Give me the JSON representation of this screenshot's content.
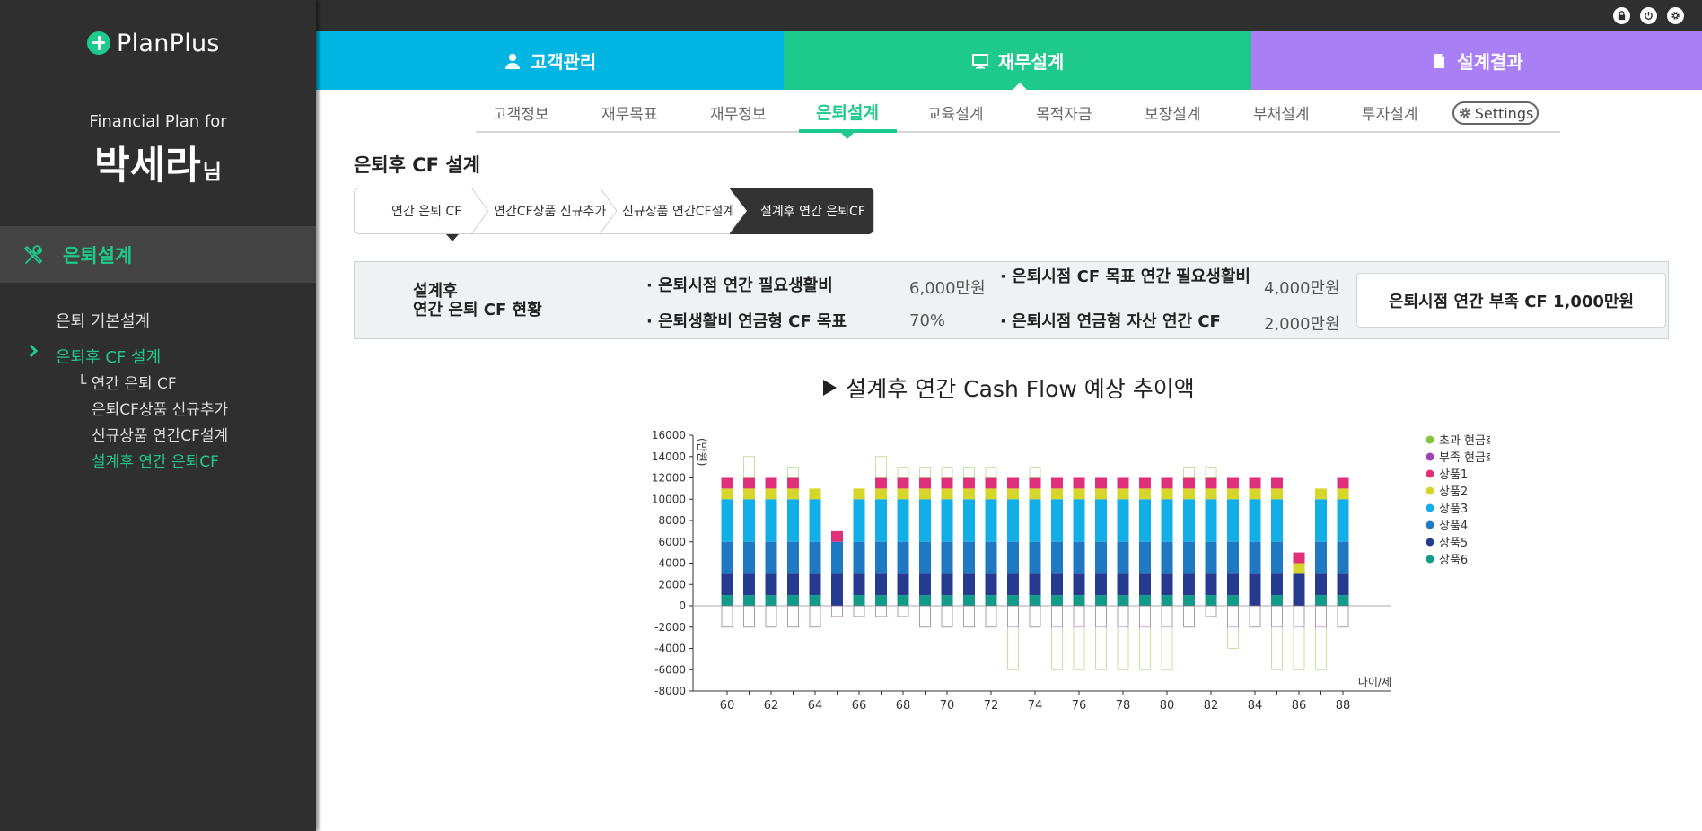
{
  "brand": {
    "logo_text": "PlanPlus"
  },
  "sidebar": {
    "plan_for": "Financial Plan for",
    "client_name": "박세라",
    "client_suffix": "님",
    "section_label": "은퇴설계",
    "menu": [
      {
        "label": "은퇴 기본설계"
      },
      {
        "label": "은퇴후 CF 설계"
      },
      {
        "label": "└ 연간 은퇴 CF"
      },
      {
        "label": "은퇴CF상품 신규추가"
      },
      {
        "label": "신규상품 연간CF설계"
      },
      {
        "label": "설계후 연간 은퇴CF"
      }
    ]
  },
  "topbar": {
    "icons": [
      "lock-icon",
      "power-icon",
      "gear-icon"
    ]
  },
  "main_tabs": [
    {
      "label": "고객관리",
      "icon": "user-icon",
      "color": "#00b5e2"
    },
    {
      "label": "재무설계",
      "icon": "monitor-icon",
      "color": "#1ec98c"
    },
    {
      "label": "설계결과",
      "icon": "document-icon",
      "color": "#a87ff5"
    }
  ],
  "sub_tabs": [
    {
      "label": "고객정보"
    },
    {
      "label": "재무목표"
    },
    {
      "label": "재무정보"
    },
    {
      "label": "은퇴설계"
    },
    {
      "label": "교육설계"
    },
    {
      "label": "목적자금"
    },
    {
      "label": "보장설계"
    },
    {
      "label": "부채설계"
    },
    {
      "label": "투자설계"
    }
  ],
  "settings_label": "Settings",
  "section_title": "은퇴후 CF 설계",
  "steps": [
    {
      "label": "연간 은퇴 CF"
    },
    {
      "label": "연간CF상품 신규추가"
    },
    {
      "label": "신규상품 연간CF설계"
    },
    {
      "label": "설계후 연간 은퇴CF"
    }
  ],
  "status": {
    "label_line1": "설계후",
    "label_line2": "연간 은퇴 CF 현황",
    "items": [
      {
        "label": "· 은퇴시점 연간 필요생활비",
        "value": "6,000만원"
      },
      {
        "label": "· 은퇴시점 CF 목표 연간 필요생활비",
        "value": "4,000만원"
      },
      {
        "label": "· 은퇴생활비 연금형 CF 목표",
        "value": "70%"
      },
      {
        "label": "· 은퇴시점 연금형 자산 연간 CF",
        "value": "2,000만원"
      }
    ],
    "shortfall": "은퇴시점 연간 부족 CF 1,000만원"
  },
  "chart_title": "설계후 연간 Cash Flow 예상 추이액",
  "chart_data": {
    "type": "bar",
    "stacked": true,
    "ylabel": "(만원)",
    "xlabel": "나이/세",
    "ylim": [
      -8000,
      16000
    ],
    "yticks": [
      16000,
      14000,
      12000,
      10000,
      8000,
      6000,
      4000,
      2000,
      0,
      -2000,
      -4000,
      -6000,
      -8000
    ],
    "xticks": [
      60,
      62,
      64,
      66,
      68,
      70,
      72,
      74,
      76,
      78,
      80,
      82,
      84,
      86,
      88
    ],
    "x": [
      60,
      61,
      62,
      63,
      64,
      65,
      66,
      67,
      68,
      69,
      70,
      71,
      72,
      73,
      74,
      75,
      76,
      77,
      78,
      79,
      80,
      81,
      82,
      83,
      84,
      85,
      86,
      87,
      88
    ],
    "legend_position": "right",
    "series": [
      {
        "name": "상품6",
        "color": "#139b8a",
        "values": [
          1000,
          1000,
          1000,
          1000,
          1000,
          0,
          1000,
          1000,
          1000,
          1000,
          1000,
          1000,
          1000,
          1000,
          1000,
          1000,
          1000,
          1000,
          1000,
          1000,
          1000,
          1000,
          1000,
          1000,
          0,
          1000,
          0,
          1000,
          1000
        ]
      },
      {
        "name": "상품5",
        "color": "#263a8f",
        "values": [
          2000,
          2000,
          2000,
          2000,
          2000,
          3000,
          2000,
          2000,
          2000,
          2000,
          2000,
          2000,
          2000,
          2000,
          2000,
          2000,
          2000,
          2000,
          2000,
          2000,
          2000,
          2000,
          2000,
          2000,
          3000,
          2000,
          3000,
          2000,
          2000
        ]
      },
      {
        "name": "상품4",
        "color": "#1e78c2",
        "values": [
          3000,
          3000,
          3000,
          3000,
          3000,
          3000,
          3000,
          3000,
          3000,
          3000,
          3000,
          3000,
          3000,
          3000,
          3000,
          3000,
          3000,
          3000,
          3000,
          3000,
          3000,
          3000,
          3000,
          3000,
          3000,
          3000,
          0,
          3000,
          3000
        ]
      },
      {
        "name": "상품3",
        "color": "#12aee8",
        "values": [
          4000,
          4000,
          4000,
          4000,
          4000,
          0,
          4000,
          4000,
          4000,
          4000,
          4000,
          4000,
          4000,
          4000,
          4000,
          4000,
          4000,
          4000,
          4000,
          4000,
          4000,
          4000,
          4000,
          4000,
          4000,
          4000,
          0,
          4000,
          4000
        ]
      },
      {
        "name": "상품2",
        "color": "#d6d62a",
        "values": [
          1000,
          1000,
          1000,
          1000,
          1000,
          0,
          1000,
          1000,
          1000,
          1000,
          1000,
          1000,
          1000,
          1000,
          1000,
          1000,
          1000,
          1000,
          1000,
          1000,
          1000,
          1000,
          1000,
          1000,
          1000,
          1000,
          1000,
          1000,
          1000
        ]
      },
      {
        "name": "상품1",
        "color": "#e0307a",
        "values": [
          1000,
          1000,
          1000,
          1000,
          0,
          1000,
          0,
          1000,
          1000,
          1000,
          1000,
          1000,
          1000,
          1000,
          1000,
          1000,
          1000,
          1000,
          1000,
          1000,
          1000,
          1000,
          1000,
          1000,
          1000,
          1000,
          1000,
          0,
          1000
        ]
      }
    ],
    "excess_cf": {
      "name": "초과 현금흐름",
      "color": "#86c43d",
      "values": [
        0,
        2000,
        0,
        1000,
        0,
        0,
        0,
        2000,
        1000,
        1000,
        1000,
        1000,
        1000,
        0,
        1000,
        0,
        0,
        0,
        0,
        0,
        0,
        1000,
        1000,
        0,
        0,
        0,
        0,
        0,
        0
      ]
    },
    "deficit_cf": {
      "name": "부족 현금흐름",
      "color": "#9b45b5",
      "values": [
        -2000,
        -2000,
        -2000,
        -2000,
        -2000,
        -1000,
        -1000,
        -1000,
        -1000,
        -2000,
        -2000,
        -2000,
        -2000,
        -6000,
        -2000,
        -6000,
        -6000,
        -6000,
        -6000,
        -6000,
        -6000,
        -2000,
        -1000,
        -4000,
        -2000,
        -6000,
        -6000,
        -6000,
        -2000
      ]
    },
    "legend": [
      {
        "name": "초과 현금흐름",
        "color": "#86c43d"
      },
      {
        "name": "부족 현금흐름",
        "color": "#9b45b5"
      },
      {
        "name": "상품1",
        "color": "#e0307a"
      },
      {
        "name": "상품2",
        "color": "#d6d62a"
      },
      {
        "name": "상품3",
        "color": "#12aee8"
      },
      {
        "name": "상품4",
        "color": "#1e78c2"
      },
      {
        "name": "상품5",
        "color": "#263a8f"
      },
      {
        "name": "상품6",
        "color": "#139b8a"
      }
    ]
  }
}
